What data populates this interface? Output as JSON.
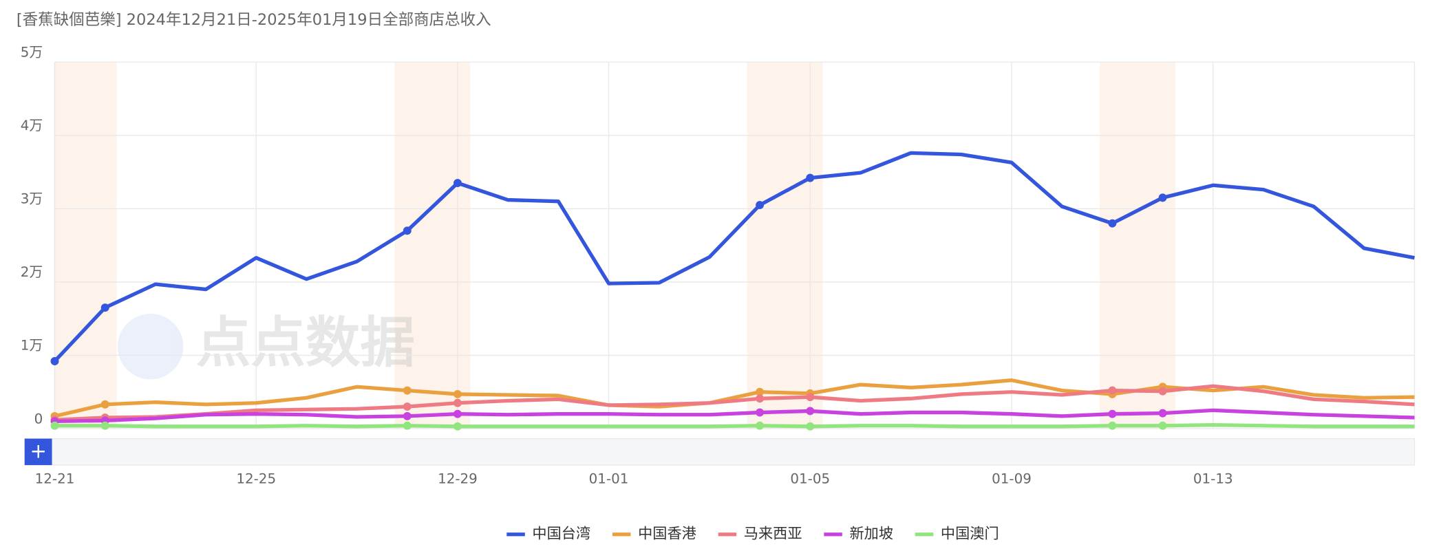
{
  "chart_data": {
    "type": "line",
    "title": "[香蕉缺個芭樂] 2024年12月21日-2025年01月19日全部商店总收入",
    "watermark": "点点数据",
    "slider_button": "+",
    "categories": [
      "12-21",
      null,
      null,
      null,
      "12-25",
      null,
      null,
      null,
      "12-29",
      null,
      null,
      "01-01",
      null,
      null,
      null,
      "01-05",
      null,
      null,
      null,
      "01-09",
      null,
      null,
      null,
      "01-13",
      null,
      null,
      null,
      null
    ],
    "ylim": [
      0,
      50000
    ],
    "yticks": [
      0,
      {
        "value": 10000,
        "label": "1万"
      },
      {
        "value": 20000,
        "label": "2万"
      },
      {
        "value": 30000,
        "label": "3万"
      },
      {
        "value": 40000,
        "label": "4万"
      },
      {
        "value": 50000,
        "label": "5万"
      }
    ],
    "grid": true,
    "legend": "bottom",
    "series": [
      {
        "name": "中国台湾",
        "color": "#3356dd",
        "values": [
          9200,
          16500,
          19700,
          19000,
          23300,
          20400,
          22800,
          27000,
          33500,
          31200,
          31000,
          19800,
          19900,
          23400,
          30500,
          34200,
          34900,
          37600,
          37400,
          36300,
          30300,
          28000,
          31500,
          33200,
          32600,
          30300,
          24600,
          23300
        ]
      },
      {
        "name": "中国香港",
        "color": "#eba040",
        "values": [
          1700,
          3300,
          3600,
          3300,
          3500,
          4200,
          5700,
          5200,
          4700,
          4600,
          4500,
          3200,
          3000,
          3500,
          5000,
          4800,
          6000,
          5600,
          6000,
          6600,
          5200,
          4700,
          5700,
          5200,
          5700,
          4600,
          4200,
          4300
        ]
      },
      {
        "name": "马来西亚",
        "color": "#ee7b84",
        "values": [
          1200,
          1500,
          1600,
          2000,
          2500,
          2600,
          2700,
          3000,
          3500,
          3800,
          4000,
          3200,
          3300,
          3500,
          4100,
          4300,
          3800,
          4100,
          4700,
          5000,
          4600,
          5200,
          5100,
          5800,
          5100,
          4000,
          3700,
          3300
        ]
      },
      {
        "name": "新加坡",
        "color": "#c842e0",
        "values": [
          1000,
          1100,
          1400,
          1900,
          2000,
          1900,
          1600,
          1700,
          2000,
          1900,
          2000,
          2000,
          1900,
          1900,
          2200,
          2400,
          2000,
          2200,
          2200,
          2000,
          1700,
          2000,
          2100,
          2500,
          2200,
          1900,
          1700,
          1500
        ]
      },
      {
        "name": "中国澳门",
        "color": "#90e57e",
        "values": [
          400,
          400,
          300,
          300,
          300,
          400,
          300,
          400,
          300,
          300,
          300,
          300,
          300,
          300,
          400,
          300,
          400,
          400,
          300,
          300,
          300,
          400,
          400,
          500,
          400,
          300,
          300,
          300
        ]
      }
    ]
  }
}
